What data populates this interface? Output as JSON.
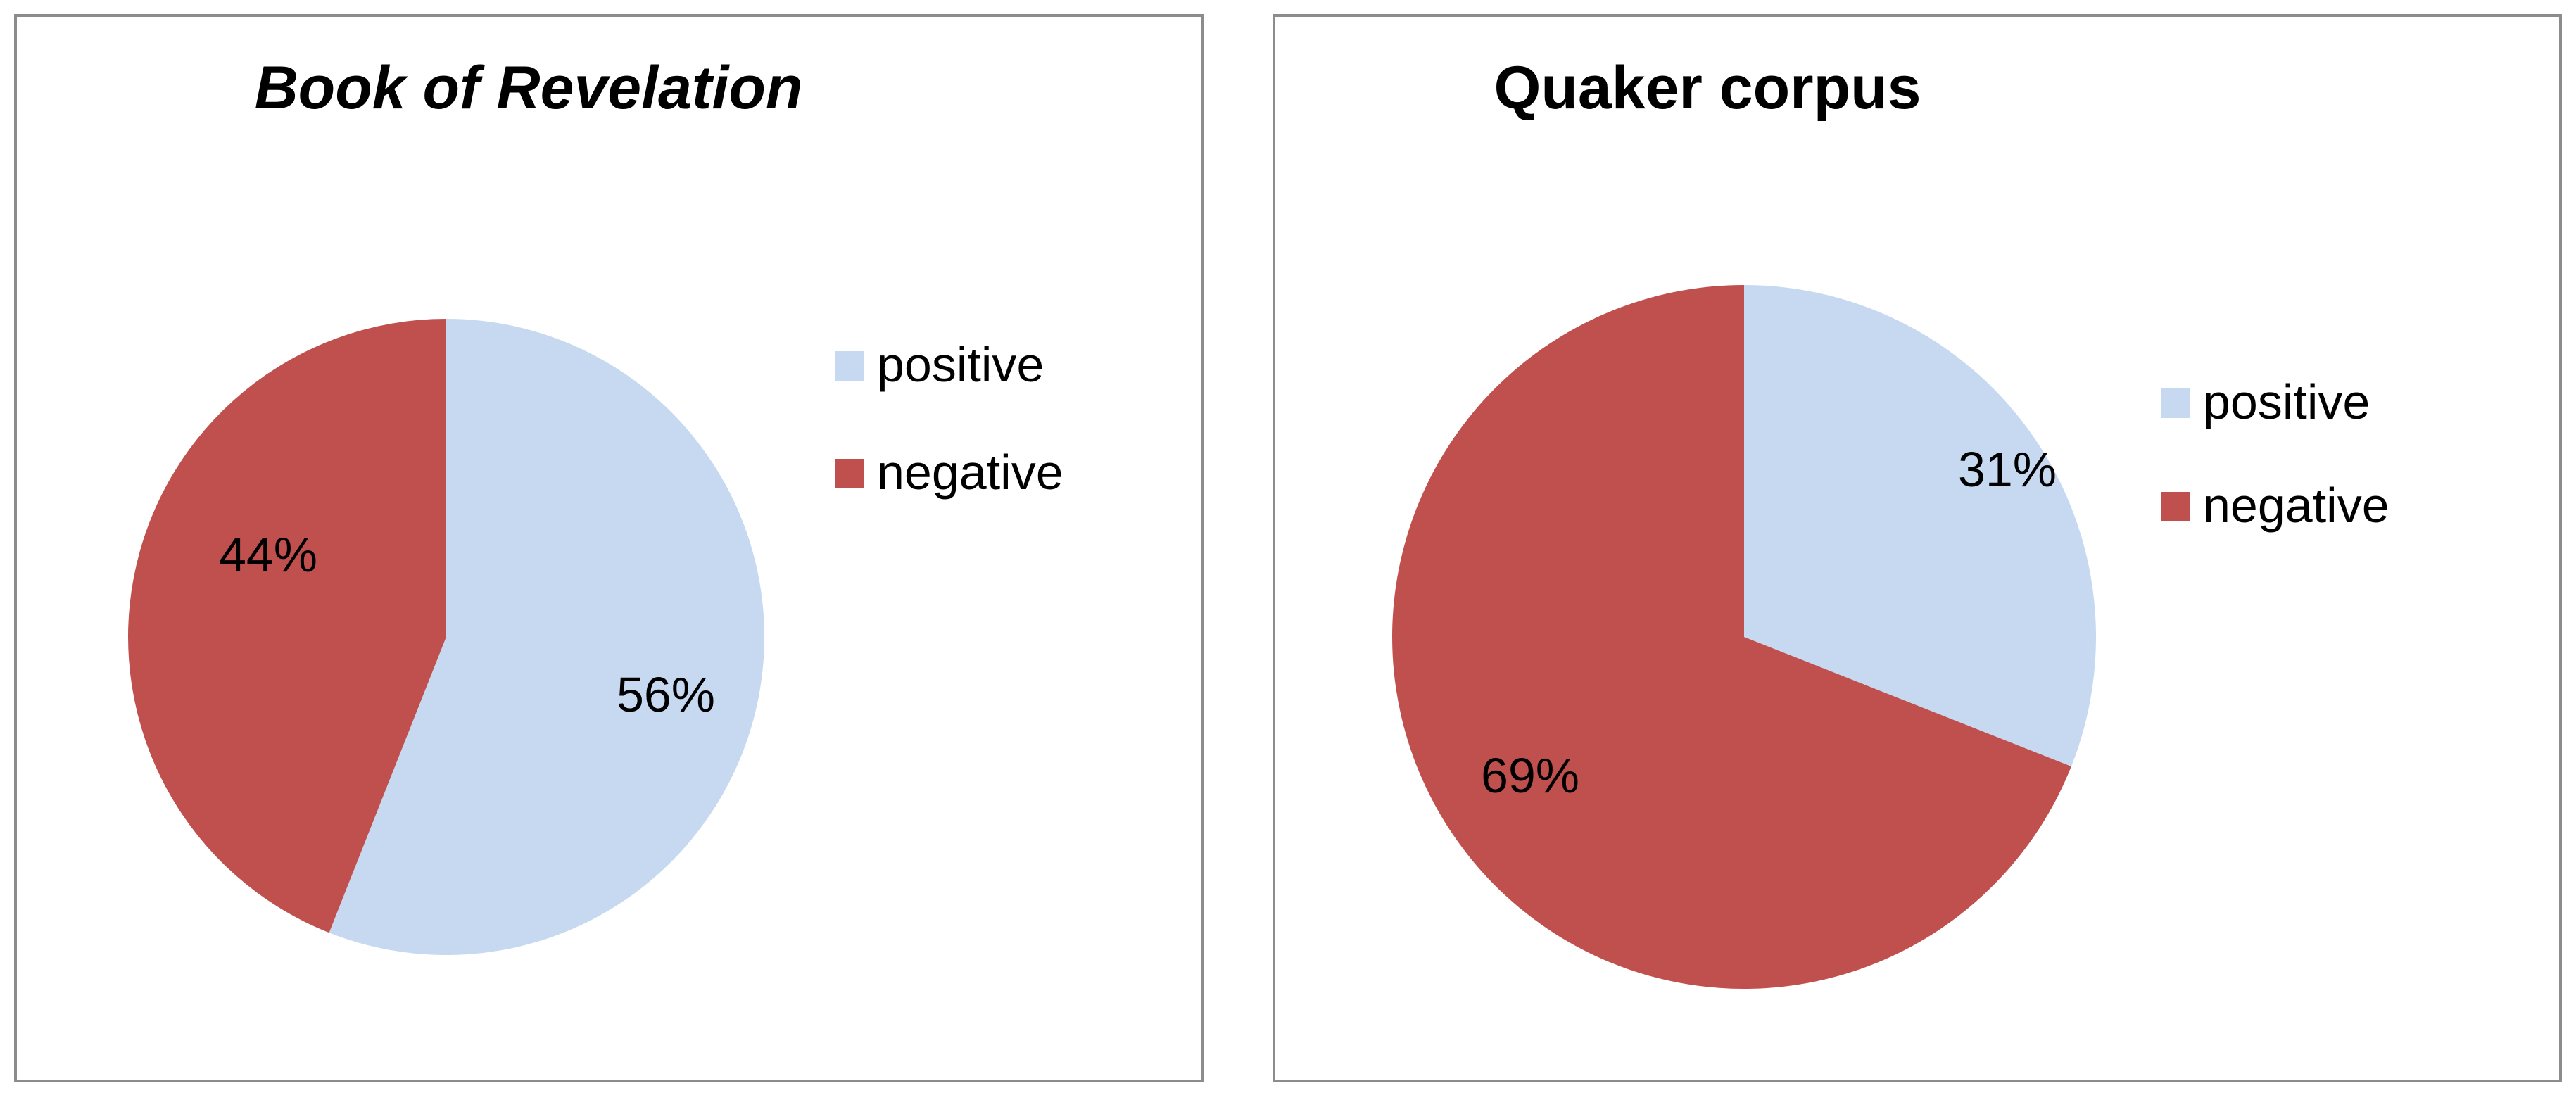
{
  "chart_data": [
    {
      "type": "pie",
      "title": "Book of Revelation",
      "title_style": "bold italic",
      "legend_position": "right",
      "categories": [
        "positive",
        "negative"
      ],
      "values": [
        56,
        44
      ],
      "labels": [
        "56%",
        "44%"
      ],
      "colors": [
        "#c6d9f1",
        "#c0504d"
      ]
    },
    {
      "type": "pie",
      "title": "Quaker corpus",
      "title_style": "bold",
      "legend_position": "right",
      "categories": [
        "positive",
        "negative"
      ],
      "values": [
        31,
        69
      ],
      "labels": [
        "31%",
        "69%"
      ],
      "colors": [
        "#c6d9f1",
        "#c0504d"
      ]
    }
  ]
}
